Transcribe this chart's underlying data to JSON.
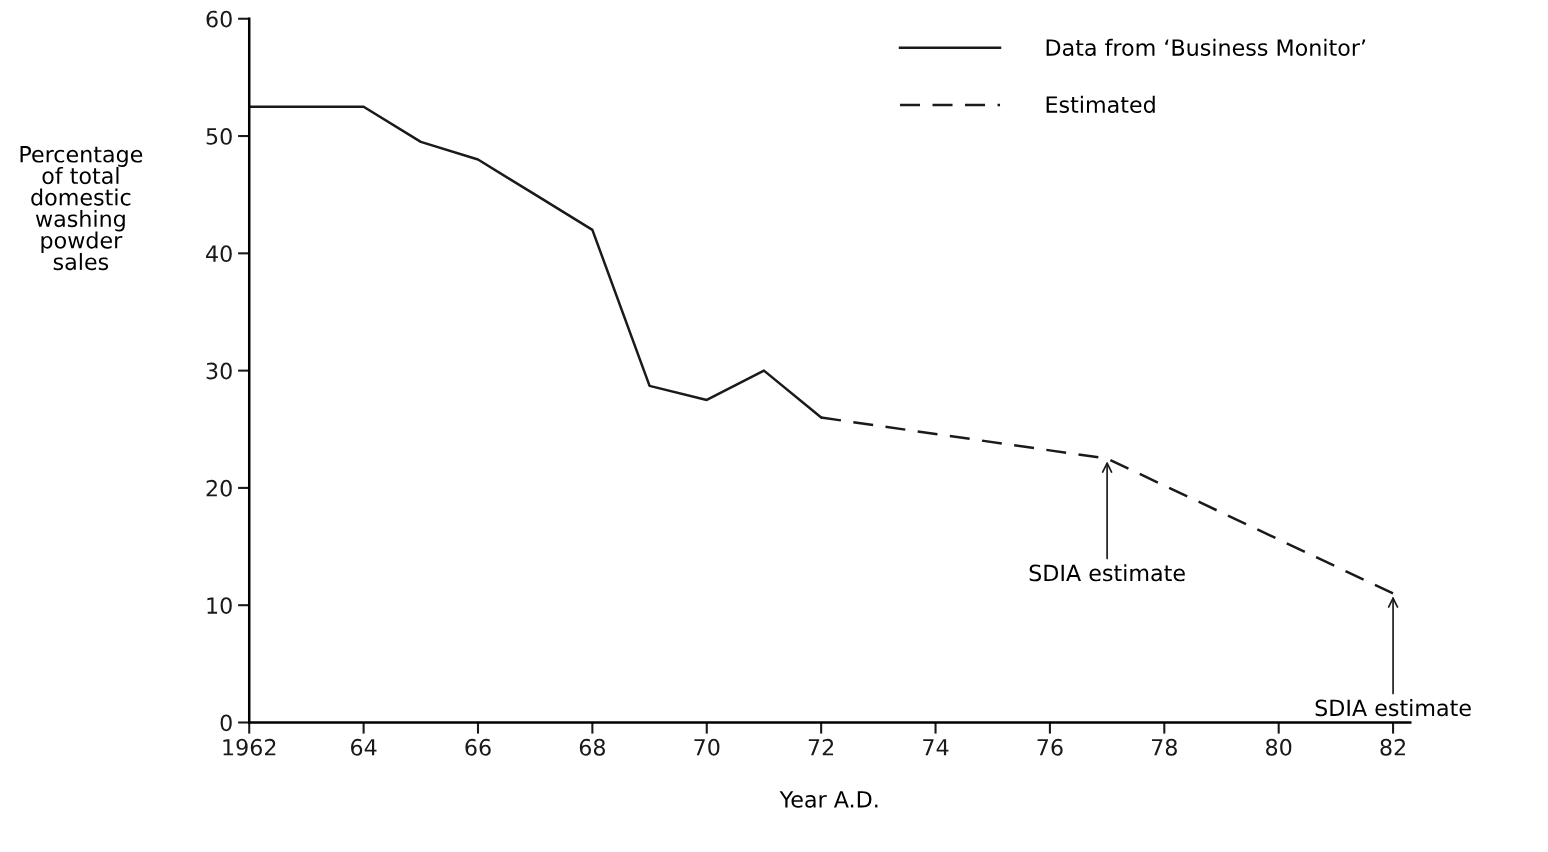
{
  "chart_data": {
    "type": "line",
    "xlabel": "Year A.D.",
    "ylabel": "Percentage\nof total\ndomestic\nwashing\npowder\nsales",
    "series": [
      {
        "name": "Data from ‘Business Monitor’",
        "color": "#1a1a1a",
        "line_style": "solid",
        "x": [
          1962,
          1963,
          1964,
          1965,
          1966,
          1967,
          1968,
          1969,
          1970,
          1971,
          1972
        ],
        "values": [
          52.5,
          52.5,
          52.5,
          49.5,
          48,
          45,
          42,
          28.7,
          27.5,
          30,
          26
        ]
      },
      {
        "name": "Estimated",
        "color": "#1a1a1a",
        "line_style": "dashed",
        "x": [
          1972,
          1977,
          1982
        ],
        "values": [
          26,
          22.5,
          11
        ]
      }
    ],
    "xlim": [
      1962,
      1982.3
    ],
    "xticks": [
      {
        "value": 1962,
        "label": "1962"
      },
      {
        "value": 1964,
        "label": "64"
      },
      {
        "value": 1966,
        "label": "66"
      },
      {
        "value": 1968,
        "label": "68"
      },
      {
        "value": 1970,
        "label": "70"
      },
      {
        "value": 1972,
        "label": "72"
      },
      {
        "value": 1974,
        "label": "74"
      },
      {
        "value": 1976,
        "label": "76"
      },
      {
        "value": 1978,
        "label": "78"
      },
      {
        "value": 1980,
        "label": "80"
      },
      {
        "value": 1982,
        "label": "82"
      }
    ],
    "ylim": [
      0,
      60
    ],
    "yticks": [
      0,
      10,
      20,
      30,
      40,
      50,
      60
    ],
    "grid": false,
    "legend": "top right",
    "marker": "none",
    "annotations": [
      {
        "text": "SDIA estimate",
        "x": 1977,
        "y": 22.5
      },
      {
        "text": "SDIA estimate",
        "x": 1982,
        "y": 11
      }
    ]
  }
}
